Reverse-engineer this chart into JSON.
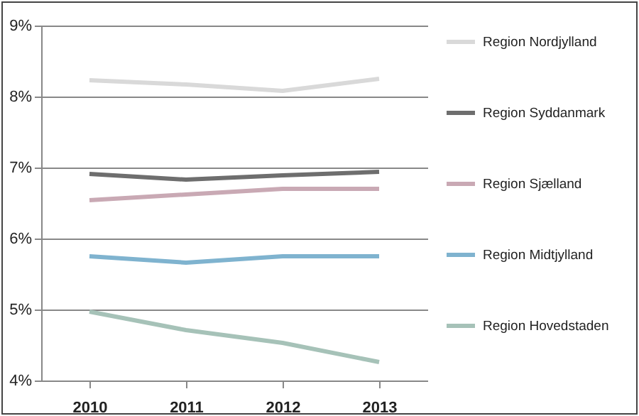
{
  "chart_data": {
    "type": "line",
    "categories": [
      "2010",
      "2011",
      "2012",
      "2013"
    ],
    "series": [
      {
        "name": "Region Nordjylland",
        "color": "#d9d9d9",
        "values": [
          8.23,
          8.17,
          8.08,
          8.25
        ]
      },
      {
        "name": "Region Syddanmark",
        "color": "#6e6e6e",
        "values": [
          6.91,
          6.83,
          6.89,
          6.94
        ]
      },
      {
        "name": "Region Sjælland",
        "color": "#c9a9b4",
        "values": [
          6.54,
          6.62,
          6.7,
          6.7
        ]
      },
      {
        "name": "Region Midtjylland",
        "color": "#7fb3cf",
        "values": [
          5.75,
          5.66,
          5.75,
          5.75
        ]
      },
      {
        "name": "Region Hovedstaden",
        "color": "#a6c2b8",
        "values": [
          4.97,
          4.71,
          4.53,
          4.26
        ]
      }
    ],
    "ylim": [
      4,
      9
    ],
    "yticks": [
      {
        "value": 4,
        "label": "4%"
      },
      {
        "value": 5,
        "label": "5%"
      },
      {
        "value": 6,
        "label": "6%"
      },
      {
        "value": 7,
        "label": "7%"
      },
      {
        "value": 8,
        "label": "8%"
      },
      {
        "value": 9,
        "label": "9%"
      }
    ],
    "grid": "y",
    "legend": "right",
    "marker": "none"
  }
}
